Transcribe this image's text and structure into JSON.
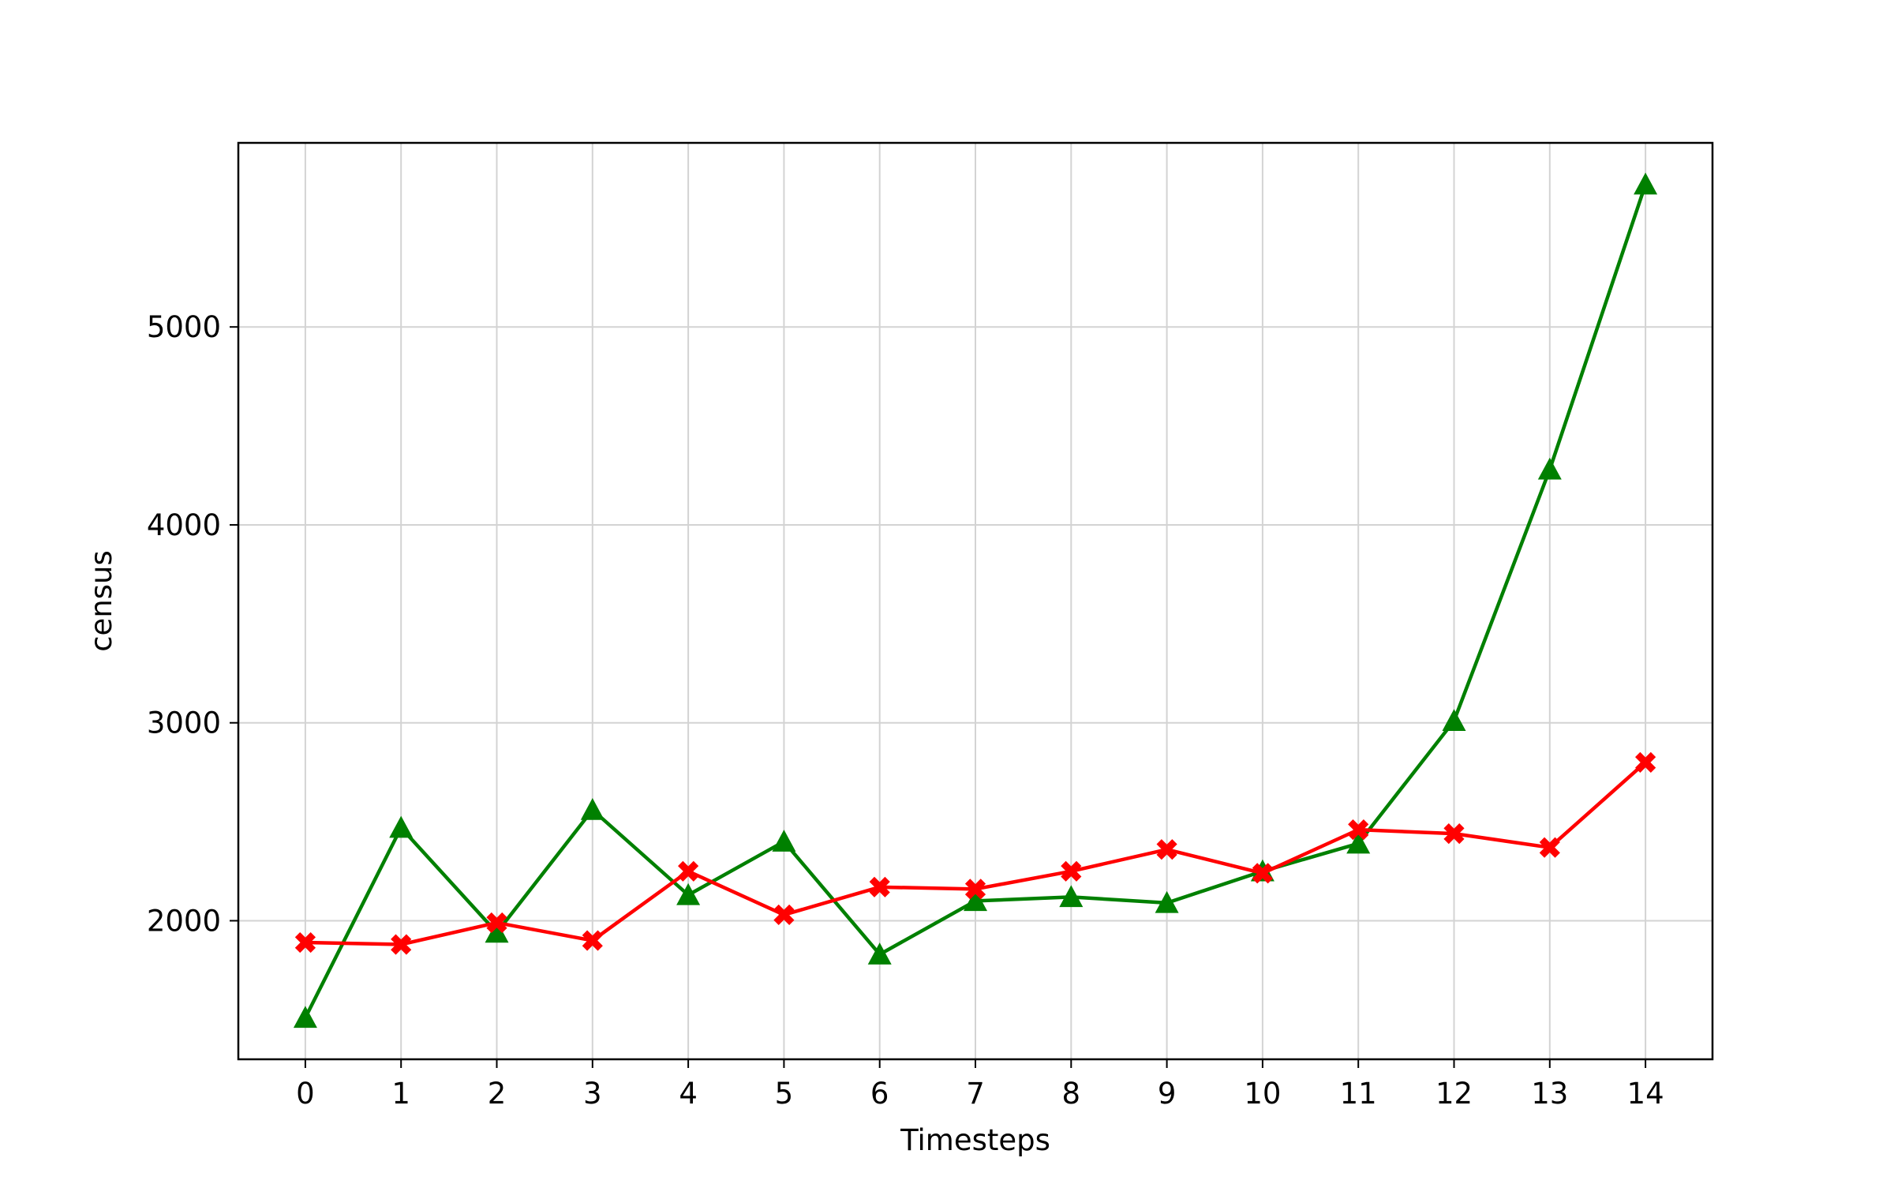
{
  "chart_data": {
    "type": "line",
    "title": "",
    "xlabel": "Timesteps",
    "ylabel": "census",
    "x": [
      0,
      1,
      2,
      3,
      4,
      5,
      6,
      7,
      8,
      9,
      10,
      11,
      12,
      13,
      14
    ],
    "x_ticks": [
      "0",
      "1",
      "2",
      "3",
      "4",
      "5",
      "6",
      "7",
      "8",
      "9",
      "10",
      "11",
      "12",
      "13",
      "14"
    ],
    "xlim": [
      -0.7,
      14.7
    ],
    "y_ticks": [
      2000,
      3000,
      4000,
      5000
    ],
    "ylim": [
      1300,
      5930
    ],
    "grid": true,
    "legend": false,
    "series": [
      {
        "color": "#008000",
        "marker": "triangle-up",
        "values": [
          1510,
          2470,
          1940,
          2560,
          2130,
          2400,
          1830,
          2100,
          2120,
          2090,
          2250,
          2390,
          3010,
          4280,
          5720
        ]
      },
      {
        "color": "#ff0000",
        "marker": "filled-x",
        "values": [
          1890,
          1880,
          1990,
          1900,
          2250,
          2030,
          2170,
          2160,
          2250,
          2360,
          2240,
          2460,
          2440,
          2370,
          2800
        ]
      }
    ]
  }
}
